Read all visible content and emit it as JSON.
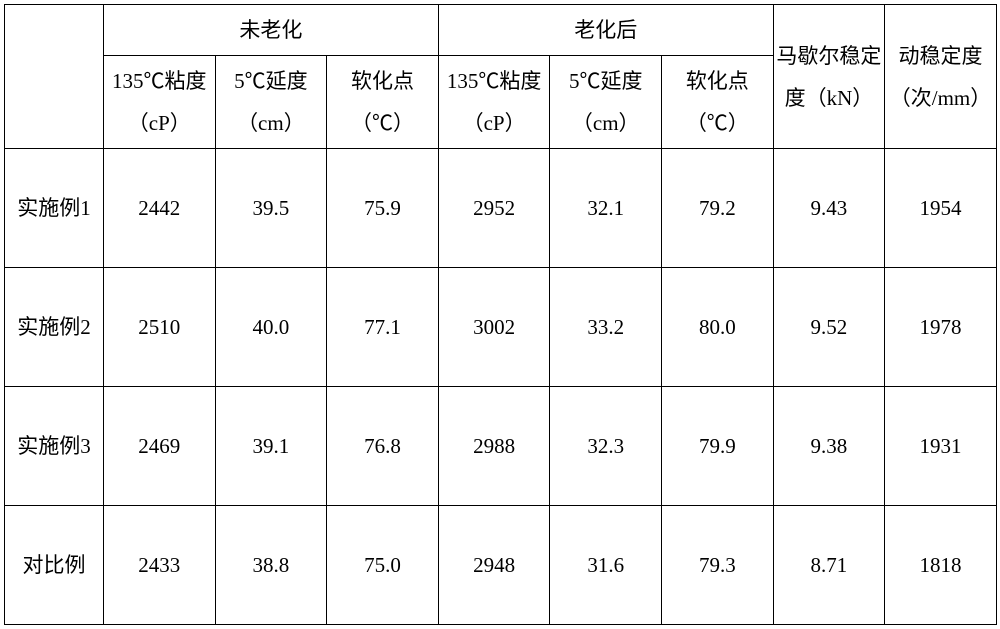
{
  "table": {
    "header": {
      "group1": "未老化",
      "group2": "老化后",
      "marshall": "马歇尔稳定度（kN）",
      "dynamic": "动稳定度（次/mm）",
      "sub": {
        "visc135": "135℃粘度（cP）",
        "duct5": "5℃延度（cm）",
        "soften": "软化点（℃）"
      }
    },
    "rows": [
      {
        "label": "实施例1",
        "c1": "2442",
        "c2": "39.5",
        "c3": "75.9",
        "c4": "2952",
        "c5": "32.1",
        "c6": "79.2",
        "c7": "9.43",
        "c8": "1954"
      },
      {
        "label": "实施例2",
        "c1": "2510",
        "c2": "40.0",
        "c3": "77.1",
        "c4": "3002",
        "c5": "33.2",
        "c6": "80.0",
        "c7": "9.52",
        "c8": "1978"
      },
      {
        "label": "实施例3",
        "c1": "2469",
        "c2": "39.1",
        "c3": "76.8",
        "c4": "2988",
        "c5": "32.3",
        "c6": "79.9",
        "c7": "9.38",
        "c8": "1931"
      },
      {
        "label": "对比例",
        "c1": "2433",
        "c2": "38.8",
        "c3": "75.0",
        "c4": "2948",
        "c5": "31.6",
        "c6": "79.3",
        "c7": "8.71",
        "c8": "1818"
      }
    ]
  },
  "style": {
    "border_color": "#000000",
    "text_color": "#000000",
    "background": "#ffffff",
    "font_family": "SimSun, serif",
    "font_size_pt": 16
  }
}
